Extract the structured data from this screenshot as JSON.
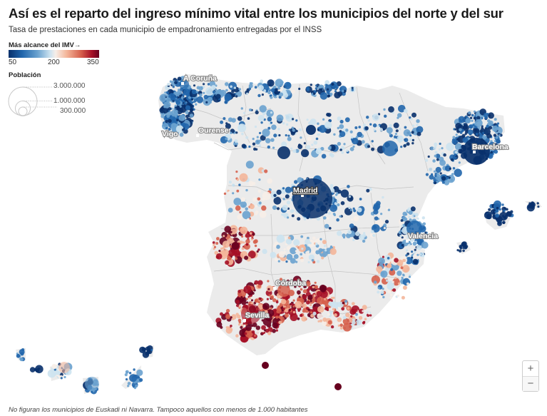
{
  "header": {
    "title": "Así es el reparto del ingreso mínimo vital entre los municipios del norte y del sur",
    "subtitle": "Tasa de prestaciones en cada municipio de empadronamiento entregadas por el INSS"
  },
  "legend": {
    "color_title": "Más alcance del IMV→",
    "color_ticks": [
      "50",
      "200",
      "350"
    ],
    "color_scale": [
      "#08306b",
      "#2166ac",
      "#6aa2cf",
      "#cde3f0",
      "#f7eee8",
      "#f4b69a",
      "#d6604d",
      "#a50f26",
      "#67001f"
    ],
    "size_title": "Población",
    "size_values": [
      "3.000.000",
      "1.000.000",
      "300.000"
    ]
  },
  "cities": [
    {
      "name": "A Coruña",
      "id": "a-coruna"
    },
    {
      "name": "Vigo",
      "id": "vigo"
    },
    {
      "name": "Ourense",
      "id": "ourense"
    },
    {
      "name": "Madrid",
      "id": "madrid"
    },
    {
      "name": "Barcelona",
      "id": "barcelona"
    },
    {
      "name": "Valencia",
      "id": "valencia"
    },
    {
      "name": "Córdoba",
      "id": "cordoba"
    },
    {
      "name": "Sevilla",
      "id": "sevilla"
    }
  ],
  "colors": {
    "land": "#ebebeb",
    "borders": "#c4c4c4"
  },
  "controls": {
    "zoom_in": "+",
    "zoom_out": "−"
  },
  "footnote": "No figuran los municipios de Euskadi ni Navarra. Tampoco aquellos con menos de 1.000 habitantes"
}
